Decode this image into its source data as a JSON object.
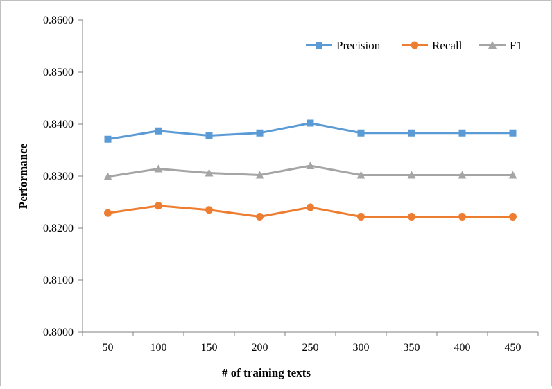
{
  "chart_data": {
    "type": "line",
    "title": "",
    "xlabel": "# of training texts",
    "ylabel": "Performance",
    "categories": [
      "50",
      "100",
      "150",
      "200",
      "250",
      "300",
      "350",
      "400",
      "450"
    ],
    "ylim": [
      0.8,
      0.86
    ],
    "yticks": [
      "0.8000",
      "0.8100",
      "0.8200",
      "0.8300",
      "0.8400",
      "0.8500",
      "0.8600"
    ],
    "grid": false,
    "legend_position": "top-right",
    "series": [
      {
        "name": "Precision",
        "color": "#5b9bd5",
        "marker": "square",
        "values": [
          0.8371,
          0.8387,
          0.8378,
          0.8383,
          0.8402,
          0.8383,
          0.8383,
          0.8383,
          0.8383
        ]
      },
      {
        "name": "Recall",
        "color": "#ed7d31",
        "marker": "circle",
        "values": [
          0.8229,
          0.8243,
          0.8235,
          0.8222,
          0.824,
          0.8222,
          0.8222,
          0.8222,
          0.8222
        ]
      },
      {
        "name": "F1",
        "color": "#a5a5a5",
        "marker": "triangle",
        "values": [
          0.8299,
          0.8314,
          0.8306,
          0.8302,
          0.832,
          0.8302,
          0.8302,
          0.8302,
          0.8302
        ]
      }
    ]
  }
}
